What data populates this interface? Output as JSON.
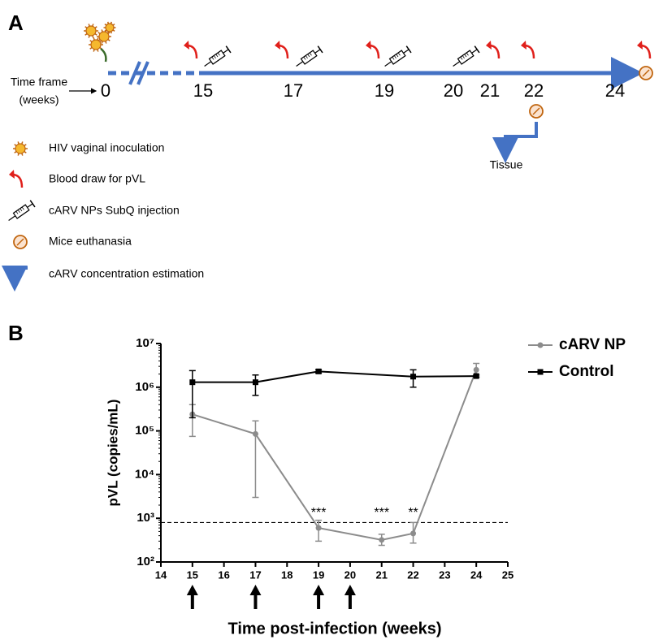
{
  "panel_a": {
    "label": "A",
    "time_frame": [
      "Time frame",
      "(weeks)"
    ],
    "weeks": [
      "0",
      "15",
      "17",
      "19",
      "20",
      "21",
      "22",
      "24"
    ],
    "tissue": "Tissue",
    "legend": [
      "HIV vaginal inoculation",
      "Blood draw for pVL",
      "cARV NPs SubQ injection",
      "Mice euthanasia",
      "cARV concentration estimation"
    ]
  },
  "panel_b_label": "B",
  "chart_data": {
    "type": "line",
    "x_label": "Time post-infection (weeks)",
    "y_label": "pVL (copies/mL)",
    "xlim": [
      14,
      25
    ],
    "xticks": [
      14,
      15,
      16,
      17,
      18,
      19,
      20,
      21,
      22,
      23,
      24,
      25
    ],
    "ylim": [
      100,
      10000000
    ],
    "y_scale": "log",
    "yticks": [
      {
        "value": 100,
        "label": "10²"
      },
      {
        "value": 1000,
        "label": "10³"
      },
      {
        "value": 10000,
        "label": "10⁴"
      },
      {
        "value": 100000,
        "label": "10⁵"
      },
      {
        "value": 1000000,
        "label": "10⁶"
      },
      {
        "value": 10000000,
        "label": "10⁷"
      }
    ],
    "legend_position": "right",
    "threshold": 800,
    "series": [
      {
        "name": "cARV NP",
        "color": "#8c8c8c",
        "marker": "circle",
        "x": [
          15,
          17,
          19,
          21,
          22,
          24
        ],
        "values": [
          240000,
          85000,
          600,
          320,
          450,
          2500000
        ],
        "ci_low": [
          75000,
          3000,
          300,
          240,
          270,
          1700000
        ],
        "ci_high": [
          400000,
          170000,
          900,
          430,
          800,
          3500000
        ]
      },
      {
        "name": "Control",
        "color": "#000000",
        "marker": "square",
        "x": [
          15,
          17,
          19,
          22,
          24
        ],
        "values": [
          1300000,
          1300000,
          2300000,
          1750000,
          1800000
        ],
        "ci_low": [
          200000,
          650000,
          2100000,
          1000000,
          1700000
        ],
        "ci_high": [
          2400000,
          1900000,
          2500000,
          2500000,
          1900000
        ]
      }
    ],
    "annotations": [
      {
        "x": 19,
        "text": "***"
      },
      {
        "x": 21,
        "text": "***"
      },
      {
        "x": 22,
        "text": "**"
      }
    ],
    "dose_x": [
      15,
      17,
      19,
      20
    ]
  }
}
